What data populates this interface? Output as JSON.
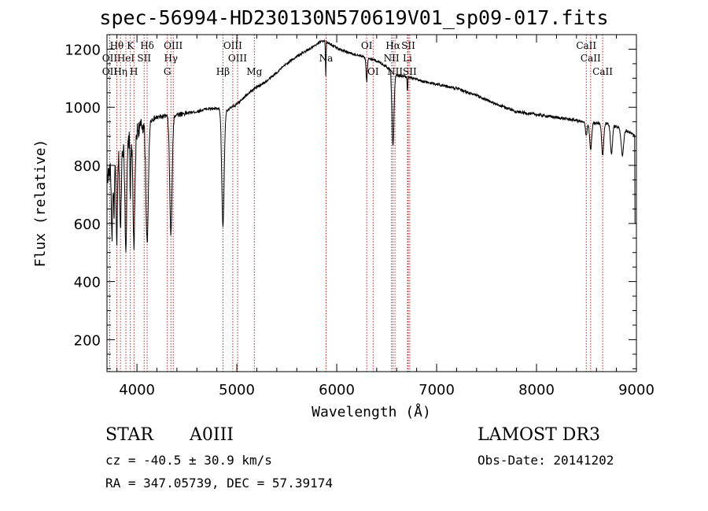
{
  "chart_data": {
    "type": "line",
    "title": "spec-56994-HD230130N570619V01_sp09-017.fits",
    "xlabel": "Wavelength (Å)",
    "ylabel": "Flux (relative)",
    "xlim": [
      3700,
      9000
    ],
    "ylim": [
      90,
      1250
    ],
    "xticks": [
      4000,
      5000,
      6000,
      7000,
      8000,
      9000
    ],
    "yticks": [
      200,
      400,
      600,
      800,
      1000,
      1200
    ],
    "grid": false,
    "spectrum": {
      "continuum": [
        [
          3700,
          760
        ],
        [
          3800,
          830
        ],
        [
          3900,
          880
        ],
        [
          4000,
          920
        ],
        [
          4100,
          950
        ],
        [
          4200,
          965
        ],
        [
          4300,
          970
        ],
        [
          4400,
          975
        ],
        [
          4500,
          980
        ],
        [
          4600,
          985
        ],
        [
          4700,
          995
        ],
        [
          4800,
          995
        ],
        [
          4900,
          990
        ],
        [
          5000,
          1010
        ],
        [
          5100,
          1045
        ],
        [
          5200,
          1070
        ],
        [
          5300,
          1090
        ],
        [
          5400,
          1120
        ],
        [
          5500,
          1150
        ],
        [
          5600,
          1175
        ],
        [
          5700,
          1195
        ],
        [
          5800,
          1215
        ],
        [
          5850,
          1230
        ],
        [
          5900,
          1225
        ],
        [
          5950,
          1215
        ],
        [
          6000,
          1205
        ],
        [
          6100,
          1190
        ],
        [
          6200,
          1180
        ],
        [
          6300,
          1170
        ],
        [
          6400,
          1160
        ],
        [
          6500,
          1140
        ],
        [
          6600,
          1110
        ],
        [
          6700,
          1105
        ],
        [
          6800,
          1095
        ],
        [
          6900,
          1085
        ],
        [
          7000,
          1080
        ],
        [
          7200,
          1065
        ],
        [
          7400,
          1040
        ],
        [
          7600,
          1010
        ],
        [
          7800,
          985
        ],
        [
          8000,
          975
        ],
        [
          8200,
          965
        ],
        [
          8400,
          955
        ],
        [
          8500,
          945
        ],
        [
          8700,
          945
        ],
        [
          8900,
          920
        ],
        [
          9000,
          900
        ]
      ],
      "absorption_lines": [
        [
          3750,
          240,
          6
        ],
        [
          3770,
          180,
          5
        ],
        [
          3798,
          290,
          7
        ],
        [
          3835,
          280,
          7
        ],
        [
          3889,
          350,
          9
        ],
        [
          3934,
          200,
          4
        ],
        [
          3970,
          380,
          10
        ],
        [
          4102,
          420,
          12
        ],
        [
          4340,
          410,
          12
        ],
        [
          4861,
          400,
          12
        ],
        [
          5890,
          120,
          3
        ],
        [
          6300,
          80,
          6
        ],
        [
          6563,
          250,
          10
        ],
        [
          6708,
          50,
          3
        ],
        [
          8498,
          40,
          8
        ],
        [
          8542,
          90,
          10
        ],
        [
          8662,
          110,
          10
        ],
        [
          8750,
          100,
          10
        ],
        [
          8860,
          90,
          12
        ]
      ],
      "end_drop": [
        8985,
        600
      ],
      "noise_seed": 17
    },
    "line_markers": [
      {
        "label": "Hθ",
        "wavelength": 3798,
        "row": 0
      },
      {
        "label": "K",
        "wavelength": 3934,
        "row": 0
      },
      {
        "label": "Hδ",
        "wavelength": 4102,
        "row": 0
      },
      {
        "label": "OII",
        "wavelength": 3727,
        "row": 1
      },
      {
        "label": "HeI",
        "wavelength": 3889,
        "row": 1
      },
      {
        "label": "SII",
        "wavelength": 4072,
        "row": 1
      },
      {
        "label": "OIII",
        "wavelength": 4363,
        "row": 0
      },
      {
        "label": "Hγ",
        "wavelength": 4340,
        "row": 1
      },
      {
        "label": "OII",
        "wavelength": 3727,
        "row": 2
      },
      {
        "label": "Hη",
        "wavelength": 3835,
        "row": 2
      },
      {
        "label": "H",
        "wavelength": 3970,
        "row": 2
      },
      {
        "label": "G",
        "wavelength": 4304,
        "row": 2
      },
      {
        "label": "OIII",
        "wavelength": 4959,
        "row": 0
      },
      {
        "label": "OIII",
        "wavelength": 5007,
        "row": 1
      },
      {
        "label": "Hβ",
        "wavelength": 4861,
        "row": 2
      },
      {
        "label": "Mg",
        "wavelength": 5175,
        "row": 2
      },
      {
        "label": "Na",
        "wavelength": 5893,
        "row": 1
      },
      {
        "label": "OI",
        "wavelength": 6300,
        "row": 0
      },
      {
        "label": "OI",
        "wavelength": 6364,
        "row": 2
      },
      {
        "label": "Hα",
        "wavelength": 6563,
        "row": 0
      },
      {
        "label": "SII",
        "wavelength": 6716,
        "row": 0
      },
      {
        "label": "NII",
        "wavelength": 6548,
        "row": 1
      },
      {
        "label": "Li",
        "wavelength": 6708,
        "row": 1
      },
      {
        "label": "NII",
        "wavelength": 6583,
        "row": 2
      },
      {
        "label": "SII",
        "wavelength": 6731,
        "row": 2
      },
      {
        "label": "CaII",
        "wavelength": 8498,
        "row": 0
      },
      {
        "label": "CaII",
        "wavelength": 8542,
        "row": 1
      },
      {
        "label": "CaII",
        "wavelength": 8662,
        "row": 2
      }
    ],
    "line_marker_color": "#cc2222"
  },
  "info": {
    "object_class": "STAR",
    "subclass": "A0III",
    "redshift_text": "cz = -40.5 ± 30.9 km/s",
    "coords_text": "RA = 347.05739, DEC =  57.39174",
    "survey": "LAMOST DR3",
    "obs_date": "Obs-Date: 20141202"
  }
}
